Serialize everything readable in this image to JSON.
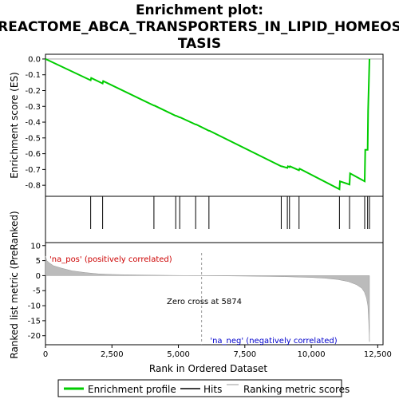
{
  "chart_data": {
    "type": "line",
    "title_lines": [
      "Enrichment plot:",
      "REACTOME_ABCA_TRANSPORTERS_IN_LIPID_HOMEOS",
      "TASIS"
    ],
    "panels": {
      "es": {
        "ylabel": "Enrichment score (ES)",
        "ylim": [
          -0.87,
          0.03
        ],
        "yticks": [
          "0.0",
          "-0.1",
          "-0.2",
          "-0.3",
          "-0.4",
          "-0.5",
          "-0.6",
          "-0.7",
          "-0.8"
        ],
        "ytick_values": [
          0.0,
          -0.1,
          -0.2,
          -0.3,
          -0.4,
          -0.5,
          -0.6,
          -0.7,
          -0.8
        ],
        "series": [
          {
            "name": "Enrichment profile",
            "color": "#00cc00",
            "x": [
              0,
              1700,
              1720,
              2150,
              2170,
              4080,
              4100,
              4900,
              4920,
              5050,
              5070,
              5650,
              5670,
              6150,
              6170,
              8870,
              8890,
              9100,
              9120,
              9180,
              9200,
              9540,
              9560,
              11060,
              11080,
              11440,
              11460,
              12010,
              12030,
              12120,
              12140,
              12190
            ],
            "y": [
              0.0,
              -0.135,
              -0.12,
              -0.155,
              -0.14,
              -0.295,
              -0.295,
              -0.36,
              -0.36,
              -0.37,
              -0.37,
              -0.415,
              -0.415,
              -0.455,
              -0.455,
              -0.68,
              -0.68,
              -0.69,
              -0.68,
              -0.685,
              -0.68,
              -0.705,
              -0.695,
              -0.825,
              -0.775,
              -0.795,
              -0.725,
              -0.775,
              -0.575,
              -0.575,
              -0.325,
              0.0
            ]
          }
        ]
      },
      "hits": {
        "name": "Hits",
        "color": "#000000",
        "positions": [
          1700,
          2150,
          4080,
          4900,
          5050,
          5650,
          6150,
          8870,
          9100,
          9180,
          9540,
          11060,
          11440,
          12010,
          12120,
          12190
        ]
      },
      "ranked": {
        "name": "Ranking metric scores",
        "ylabel": "Ranked list metric (PreRanked)",
        "ylim": [
          -23,
          11
        ],
        "yticks": [
          "10",
          "5",
          "0",
          "-5",
          "-10",
          "-15",
          "-20"
        ],
        "ytick_values": [
          10,
          5,
          0,
          -5,
          -10,
          -15,
          -20
        ],
        "metric_curve": {
          "x": [
            0,
            50,
            150,
            300,
            600,
            1000,
            1500,
            2000,
            2500,
            3000,
            4000,
            5000,
            5874,
            7000,
            8000,
            9000,
            10000,
            10500,
            11000,
            11400,
            11700,
            11900,
            12000,
            12080,
            12130,
            12160,
            12190
          ],
          "y": [
            6.5,
            5.0,
            4.2,
            3.3,
            2.5,
            1.6,
            1.0,
            0.6,
            0.4,
            0.3,
            0.15,
            0.05,
            0,
            -0.1,
            -0.2,
            -0.35,
            -0.6,
            -0.85,
            -1.3,
            -2.0,
            -3.0,
            -4.2,
            -5.5,
            -7.5,
            -10,
            -15,
            -22
          ]
        },
        "zero_cross": 5874,
        "zero_cross_label": "Zero cross at 5874",
        "pos_label": "'na_pos' (positively correlated)",
        "neg_label": "'na_neg' (negatively correlated)",
        "pos_label_color": "#cc0000",
        "neg_label_color": "#0000cc"
      }
    },
    "xaxis": {
      "label": "Rank in Ordered Dataset",
      "xlim": [
        0,
        12700
      ],
      "ticks": [
        "0",
        "2,500",
        "5,000",
        "7,500",
        "10,000",
        "12,500"
      ],
      "tick_values": [
        0,
        2500,
        5000,
        7500,
        10000,
        12500
      ]
    },
    "heat_bar": {
      "segments": [
        {
          "from": 0,
          "to": 400,
          "color": "#e8001a"
        },
        {
          "from": 400,
          "to": 1250,
          "color": "#f23a48"
        },
        {
          "from": 1250,
          "to": 1800,
          "color": "#f76a76"
        },
        {
          "from": 1800,
          "to": 2800,
          "color": "#fa9da5"
        },
        {
          "from": 2800,
          "to": 4100,
          "color": "#fccad0"
        },
        {
          "from": 4100,
          "to": 5874,
          "color": "#fde3e6"
        },
        {
          "from": 5874,
          "to": 8100,
          "color": "#dcdcf7"
        },
        {
          "from": 8100,
          "to": 9800,
          "color": "#cfd0f4"
        },
        {
          "from": 9800,
          "to": 10350,
          "color": "#b8b9ef"
        },
        {
          "from": 10350,
          "to": 10800,
          "color": "#8e90e6"
        },
        {
          "from": 10800,
          "to": 11250,
          "color": "#5a5cdd"
        },
        {
          "from": 11250,
          "to": 11850,
          "color": "#2f31d2"
        },
        {
          "from": 11850,
          "to": 12190,
          "color": "#1010b8"
        }
      ]
    },
    "legend": {
      "items": [
        {
          "label": "Enrichment profile",
          "color": "#00cc00"
        },
        {
          "label": "Hits",
          "color": "#000000"
        },
        {
          "label": "Ranking metric scores",
          "color": "#bbbbbb"
        }
      ]
    }
  }
}
